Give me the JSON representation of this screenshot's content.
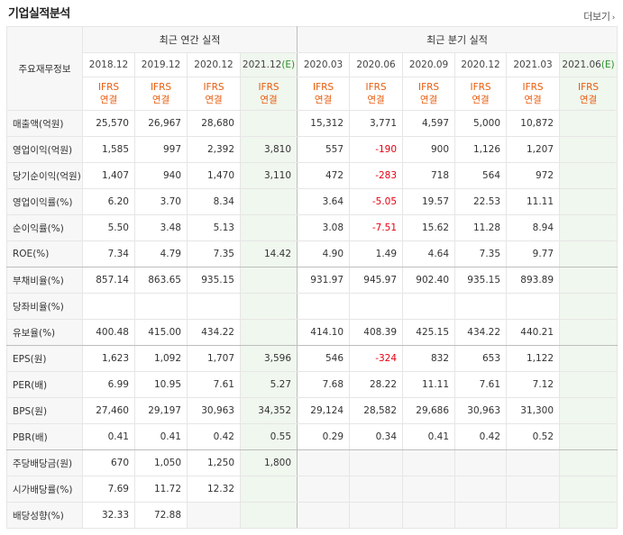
{
  "title": "기업실적분석",
  "more_label": "더보기",
  "header": {
    "row_label": "주요재무정보",
    "annual_group": "최근 연간 실적",
    "quarter_group": "최근 분기 실적",
    "periods": [
      "2018.12",
      "2019.12",
      "2020.12",
      "2021.12(E)",
      "2020.03",
      "2020.06",
      "2020.09",
      "2020.12",
      "2021.03",
      "2021.06(E)"
    ],
    "ifrs_top": "IFRS",
    "ifrs_bottom": "연결"
  },
  "rows": [
    {
      "label": "매출액(억원)",
      "values": [
        "25,570",
        "26,967",
        "28,680",
        "",
        "15,312",
        "3,771",
        "4,597",
        "5,000",
        "10,872",
        ""
      ]
    },
    {
      "label": "영업이익(억원)",
      "values": [
        "1,585",
        "997",
        "2,392",
        "3,810",
        "557",
        "-190",
        "900",
        "1,126",
        "1,207",
        ""
      ]
    },
    {
      "label": "당기순이익(억원)",
      "values": [
        "1,407",
        "940",
        "1,470",
        "3,110",
        "472",
        "-283",
        "718",
        "564",
        "972",
        ""
      ]
    },
    {
      "label": "영업이익률(%)",
      "values": [
        "6.20",
        "3.70",
        "8.34",
        "",
        "3.64",
        "-5.05",
        "19.57",
        "22.53",
        "11.11",
        ""
      ]
    },
    {
      "label": "순이익률(%)",
      "values": [
        "5.50",
        "3.48",
        "5.13",
        "",
        "3.08",
        "-7.51",
        "15.62",
        "11.28",
        "8.94",
        ""
      ]
    },
    {
      "label": "ROE(%)",
      "values": [
        "7.34",
        "4.79",
        "7.35",
        "14.42",
        "4.90",
        "1.49",
        "4.64",
        "7.35",
        "9.77",
        ""
      ]
    },
    {
      "label": "부채비율(%)",
      "values": [
        "857.14",
        "863.65",
        "935.15",
        "",
        "931.97",
        "945.97",
        "902.40",
        "935.15",
        "893.89",
        ""
      ]
    },
    {
      "label": "당좌비율(%)",
      "values": [
        "",
        "",
        "",
        "",
        "",
        "",
        "",
        "",
        "",
        ""
      ]
    },
    {
      "label": "유보율(%)",
      "values": [
        "400.48",
        "415.00",
        "434.22",
        "",
        "414.10",
        "408.39",
        "425.15",
        "434.22",
        "440.21",
        ""
      ]
    },
    {
      "label": "EPS(원)",
      "values": [
        "1,623",
        "1,092",
        "1,707",
        "3,596",
        "546",
        "-324",
        "832",
        "653",
        "1,122",
        ""
      ]
    },
    {
      "label": "PER(배)",
      "values": [
        "6.99",
        "10.95",
        "7.61",
        "5.27",
        "7.68",
        "28.22",
        "11.11",
        "7.61",
        "7.12",
        ""
      ]
    },
    {
      "label": "BPS(원)",
      "values": [
        "27,460",
        "29,197",
        "30,963",
        "34,352",
        "29,124",
        "28,582",
        "29,686",
        "30,963",
        "31,300",
        ""
      ]
    },
    {
      "label": "PBR(배)",
      "values": [
        "0.41",
        "0.41",
        "0.42",
        "0.55",
        "0.29",
        "0.34",
        "0.41",
        "0.42",
        "0.52",
        ""
      ]
    },
    {
      "label": "주당배당금(원)",
      "values": [
        "670",
        "1,050",
        "1,250",
        "1,800",
        "",
        "",
        "",
        "",
        "",
        ""
      ]
    },
    {
      "label": "시가배당률(%)",
      "values": [
        "7.69",
        "11.72",
        "12.32",
        "",
        "",
        "",
        "",
        "",
        "",
        ""
      ]
    },
    {
      "label": "배당성향(%)",
      "values": [
        "32.33",
        "72.88",
        "",
        "",
        "",
        "",
        "",
        "",
        "",
        ""
      ]
    }
  ],
  "colors": {
    "accent_orange": "#e85c0d",
    "negative": "#e60012",
    "estimate_bg": "#f0f7ee"
  }
}
